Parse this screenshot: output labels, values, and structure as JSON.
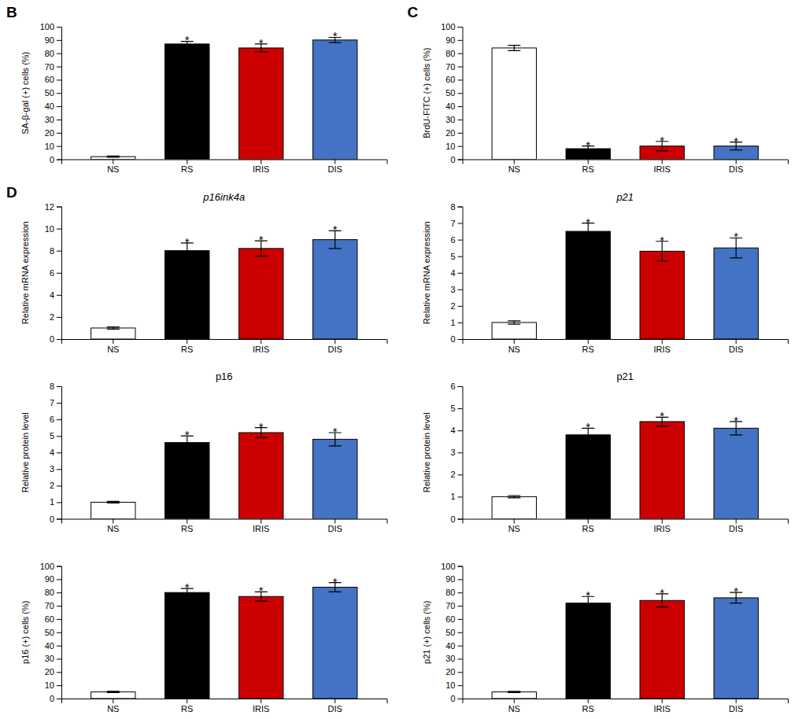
{
  "chart_data": [
    {
      "type": "bar",
      "categories": [
        "NS",
        "RS",
        "IRIS",
        "DIS"
      ],
      "colors": [
        "white",
        "black",
        "#cc0000",
        "#4472c4"
      ],
      "values": [
        2.0,
        87.0,
        84.0,
        90.0
      ],
      "errors": [
        0.5,
        2.0,
        3.0,
        2.0
      ],
      "y_label": "SA-β-gal (+) cells (%)",
      "ylim": [
        0,
        100
      ],
      "yticks": [
        0,
        10,
        20,
        30,
        40,
        50,
        60,
        70,
        80,
        90,
        100
      ],
      "grid": false,
      "annotations": [
        {
          "text": "B"
        },
        {
          "text": "*",
          "x": "RS"
        },
        {
          "text": "*",
          "x": "IRIS"
        },
        {
          "text": "*",
          "x": "DIS"
        }
      ]
    },
    {
      "type": "bar",
      "categories": [
        "NS",
        "RS",
        "IRIS",
        "DIS"
      ],
      "colors": [
        "white",
        "black",
        "#cc0000",
        "#4472c4"
      ],
      "values": [
        84.0,
        8.0,
        10.0,
        10.0
      ],
      "errors": [
        2.0,
        2.0,
        3.5,
        3.0
      ],
      "y_label": "BrdU-FITC (+) cells (%)",
      "ylim": [
        0,
        100
      ],
      "yticks": [
        0,
        10,
        20,
        30,
        40,
        50,
        60,
        70,
        80,
        90,
        100
      ],
      "grid": false,
      "annotations": [
        {
          "text": "C"
        },
        {
          "text": "*",
          "x": "RS"
        },
        {
          "text": "*",
          "x": "IRIS"
        },
        {
          "text": "*",
          "x": "DIS"
        }
      ]
    },
    {
      "type": "bar",
      "title": "p16ink4a",
      "categories": [
        "NS",
        "RS",
        "IRIS",
        "DIS"
      ],
      "colors": [
        "white",
        "black",
        "#cc0000",
        "#4472c4"
      ],
      "values": [
        1.0,
        8.0,
        8.2,
        9.0
      ],
      "errors": [
        0.1,
        0.7,
        0.7,
        0.8
      ],
      "y_label": "Relative mRNA expression",
      "ylim": [
        0,
        12
      ],
      "yticks": [
        0,
        2,
        4,
        6,
        8,
        10,
        12
      ],
      "grid": false,
      "annotations": [
        {
          "text": "D"
        },
        {
          "text": "*",
          "x": "RS"
        },
        {
          "text": "*",
          "x": "IRIS"
        },
        {
          "text": "*",
          "x": "DIS"
        }
      ]
    },
    {
      "type": "bar",
      "title": "p21",
      "categories": [
        "NS",
        "RS",
        "IRIS",
        "DIS"
      ],
      "colors": [
        "white",
        "black",
        "#cc0000",
        "#4472c4"
      ],
      "values": [
        1.0,
        6.5,
        5.3,
        5.5
      ],
      "errors": [
        0.1,
        0.5,
        0.6,
        0.6
      ],
      "y_label": "Relative mRNA expression",
      "ylim": [
        0,
        8
      ],
      "yticks": [
        0,
        1,
        2,
        3,
        4,
        5,
        6,
        7,
        8
      ],
      "grid": false,
      "annotations": [
        {
          "text": "*",
          "x": "RS"
        },
        {
          "text": "*",
          "x": "IRIS"
        },
        {
          "text": "*",
          "x": "DIS"
        }
      ]
    },
    {
      "type": "bar",
      "title": "p16",
      "categories": [
        "NS",
        "RS",
        "IRIS",
        "DIS"
      ],
      "colors": [
        "white",
        "black",
        "#cc0000",
        "#4472c4"
      ],
      "values": [
        1.0,
        4.6,
        5.2,
        4.8
      ],
      "errors": [
        0.05,
        0.4,
        0.3,
        0.4
      ],
      "y_label": "Relative protein level",
      "ylim": [
        0,
        8
      ],
      "yticks": [
        0,
        1,
        2,
        3,
        4,
        5,
        6,
        7,
        8
      ],
      "grid": false,
      "annotations": [
        {
          "text": "*",
          "x": "RS"
        },
        {
          "text": "*",
          "x": "IRIS"
        },
        {
          "text": "*",
          "x": "DIS"
        }
      ]
    },
    {
      "type": "bar",
      "title": "p21",
      "categories": [
        "NS",
        "RS",
        "IRIS",
        "DIS"
      ],
      "colors": [
        "white",
        "black",
        "#cc0000",
        "#4472c4"
      ],
      "values": [
        1.0,
        3.8,
        4.4,
        4.1
      ],
      "errors": [
        0.05,
        0.3,
        0.2,
        0.3
      ],
      "y_label": "Relative protein level",
      "ylim": [
        0,
        6
      ],
      "yticks": [
        0,
        1,
        2,
        3,
        4,
        5,
        6
      ],
      "grid": false,
      "annotations": [
        {
          "text": "*",
          "x": "RS"
        },
        {
          "text": "*",
          "x": "IRIS"
        },
        {
          "text": "*",
          "x": "DIS"
        }
      ]
    },
    {
      "type": "bar",
      "categories": [
        "NS",
        "RS",
        "IRIS",
        "DIS"
      ],
      "colors": [
        "white",
        "black",
        "#cc0000",
        "#4472c4"
      ],
      "values": [
        5.0,
        80.0,
        77.0,
        84.0
      ],
      "errors": [
        0.5,
        3.0,
        3.5,
        3.5
      ],
      "y_label": "p16 (+) cells (%)",
      "ylim": [
        0,
        100
      ],
      "yticks": [
        0,
        10,
        20,
        30,
        40,
        50,
        60,
        70,
        80,
        90,
        100
      ],
      "grid": false,
      "annotations": [
        {
          "text": "*",
          "x": "RS"
        },
        {
          "text": "*",
          "x": "IRIS"
        },
        {
          "text": "*",
          "x": "DIS"
        }
      ]
    },
    {
      "type": "bar",
      "categories": [
        "NS",
        "RS",
        "IRIS",
        "DIS"
      ],
      "colors": [
        "white",
        "black",
        "#cc0000",
        "#4472c4"
      ],
      "values": [
        5.0,
        72.0,
        74.0,
        76.0
      ],
      "errors": [
        0.5,
        5.0,
        5.0,
        4.0
      ],
      "y_label": "p21 (+) cells (%)",
      "ylim": [
        0,
        100
      ],
      "yticks": [
        0,
        10,
        20,
        30,
        40,
        50,
        60,
        70,
        80,
        90,
        100
      ],
      "grid": false,
      "annotations": [
        {
          "text": "*",
          "x": "RS"
        },
        {
          "text": "*",
          "x": "IRIS"
        },
        {
          "text": "*",
          "x": "DIS"
        }
      ]
    }
  ]
}
